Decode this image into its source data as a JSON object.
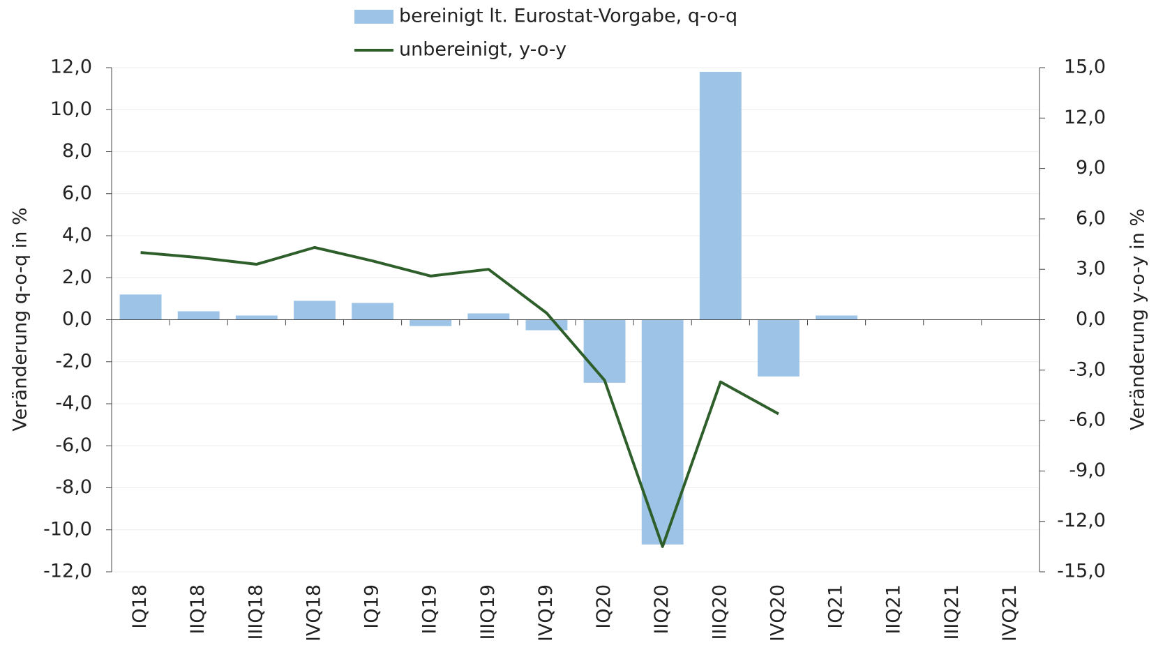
{
  "chart_data": {
    "type": "bar-line",
    "categories": [
      "IQ18",
      "IIQ18",
      "IIIQ18",
      "IVQ18",
      "IQ19",
      "IIQ19",
      "IIIQ19",
      "IVQ19",
      "IQ20",
      "IIQ20",
      "IIIQ20",
      "IVQ20",
      "IQ21",
      "IIQ21",
      "IIIQ21",
      "IVQ21"
    ],
    "series": [
      {
        "name": "bereinigt lt. Eurostat-Vorgabe, q-o-q",
        "type": "bar",
        "color": "#9dc3e6",
        "values": [
          1.2,
          0.4,
          0.2,
          0.9,
          0.8,
          -0.3,
          0.3,
          -0.5,
          -3.0,
          -10.7,
          11.8,
          -2.7,
          0.2,
          null,
          null,
          null
        ]
      },
      {
        "name": "unbereinigt, y-o-y",
        "type": "line",
        "axis": "y2",
        "color": "#2e5e2a",
        "values": [
          4.0,
          3.7,
          3.3,
          4.3,
          3.5,
          2.6,
          3.0,
          0.4,
          -3.6,
          -13.5,
          -3.7,
          -5.6,
          null,
          null,
          null,
          null
        ]
      }
    ],
    "y_label": "Veränderung q-o-q in %",
    "y2_label": "Veränderung y-o-y in %",
    "ylim": [
      -12,
      12
    ],
    "yticks": [
      {
        "value": -12,
        "label": "-12,0"
      },
      {
        "value": -10,
        "label": "-10,0"
      },
      {
        "value": -8,
        "label": "-8,0"
      },
      {
        "value": -6,
        "label": "-6,0"
      },
      {
        "value": -4,
        "label": "-4,0"
      },
      {
        "value": -2,
        "label": "-2,0"
      },
      {
        "value": 0,
        "label": "0,0"
      },
      {
        "value": 2,
        "label": "2,0"
      },
      {
        "value": 4,
        "label": "4,0"
      },
      {
        "value": 6,
        "label": "6,0"
      },
      {
        "value": 8,
        "label": "8,0"
      },
      {
        "value": 10,
        "label": "10,0"
      },
      {
        "value": 12,
        "label": "12,0"
      }
    ],
    "y2lim": [
      -15,
      15
    ],
    "y2ticks": [
      {
        "value": -15,
        "label": "-15,0"
      },
      {
        "value": -12,
        "label": "-12,0"
      },
      {
        "value": -9,
        "label": "-9,0"
      },
      {
        "value": -6,
        "label": "-6,0"
      },
      {
        "value": -3,
        "label": "-3,0"
      },
      {
        "value": 0,
        "label": "0,0"
      },
      {
        "value": 3,
        "label": "3,0"
      },
      {
        "value": 6,
        "label": "6,0"
      },
      {
        "value": 9,
        "label": "9,0"
      },
      {
        "value": 12,
        "label": "12,0"
      },
      {
        "value": 15,
        "label": "15,0"
      }
    ],
    "grid": true,
    "legend": "top"
  }
}
